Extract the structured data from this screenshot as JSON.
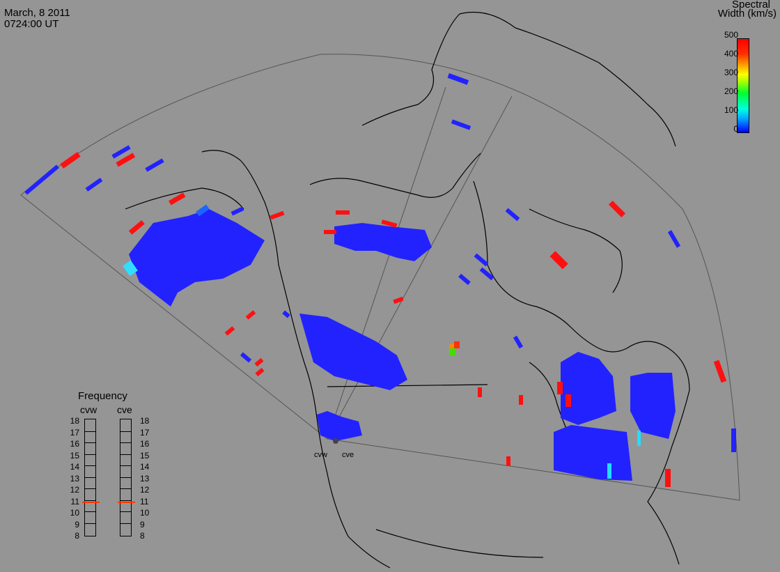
{
  "header": {
    "date": "March, 8 2011",
    "time": "0724:00 UT"
  },
  "colorbar": {
    "title_line1": "Spectral",
    "title_line2": "Width (km/s)",
    "ticks": [
      "500",
      "400",
      "300",
      "200",
      "100",
      "0"
    ],
    "range": [
      0,
      500
    ],
    "colors": [
      "#0000ff",
      "#00ffe0",
      "#00ff30",
      "#ffff00",
      "#ffa000",
      "#ff0000"
    ]
  },
  "radars": {
    "west": "cvw",
    "east": "cve"
  },
  "frequency": {
    "title": "Frequency",
    "col_west": "cvw",
    "col_east": "cve",
    "ticks": [
      "18",
      "17",
      "16",
      "15",
      "14",
      "13",
      "12",
      "11",
      "10",
      "9",
      "8"
    ],
    "cvw_value": 10.8,
    "cve_value": 10.8,
    "marker_color": "#ff3a00"
  },
  "map": {
    "background": "#959595",
    "coastline_color": "#000000",
    "fov_color": "#555555",
    "low_color": "#2222ff",
    "high_color": "#ff1010"
  }
}
